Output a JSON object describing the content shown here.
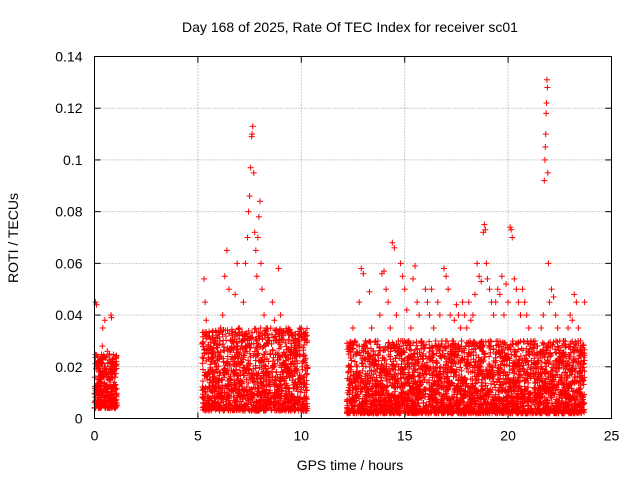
{
  "chart_data": {
    "type": "scatter",
    "title": "Day 168 of 2025, Rate Of TEC Index for receiver sc01",
    "xlabel": "GPS time / hours",
    "ylabel": "ROTI / TECUs",
    "xlim": [
      0,
      25
    ],
    "ylim": [
      0,
      0.14
    ],
    "grid": true,
    "marker": "+",
    "color": "#ff0000",
    "x_ticks": [
      0,
      5,
      10,
      15,
      20,
      25
    ],
    "x_tick_labels": [
      "0",
      "5",
      "10",
      "15",
      "20",
      "25"
    ],
    "y_ticks": [
      0,
      0.02,
      0.04,
      0.06,
      0.08,
      0.1,
      0.12,
      0.14
    ],
    "y_tick_labels": [
      "0",
      "0.02",
      "0.04",
      "0.06",
      "0.08",
      "0.1",
      "0.12",
      "0.14"
    ],
    "series": [
      {
        "name": "ROTI",
        "points": [
          [
            0.05,
            0.045
          ],
          [
            0.1,
            0.044
          ],
          [
            0.12,
            0.02
          ],
          [
            0.15,
            0.012
          ],
          [
            0.18,
            0.008
          ],
          [
            0.2,
            0.015
          ],
          [
            0.22,
            0.018
          ],
          [
            0.25,
            0.01
          ],
          [
            0.28,
            0.007
          ],
          [
            0.3,
            0.022
          ],
          [
            0.33,
            0.014
          ],
          [
            0.35,
            0.009
          ],
          [
            0.38,
            0.028
          ],
          [
            0.4,
            0.035
          ],
          [
            0.42,
            0.016
          ],
          [
            0.45,
            0.011
          ],
          [
            0.48,
            0.024
          ],
          [
            0.5,
            0.038
          ],
          [
            0.52,
            0.02
          ],
          [
            0.55,
            0.013
          ],
          [
            0.58,
            0.009
          ],
          [
            0.6,
            0.017
          ],
          [
            0.62,
            0.026
          ],
          [
            0.65,
            0.012
          ],
          [
            0.7,
            0.008
          ],
          [
            0.75,
            0.015
          ],
          [
            0.8,
            0.04
          ],
          [
            0.82,
            0.039
          ],
          [
            0.85,
            0.02
          ],
          [
            0.88,
            0.012
          ],
          [
            0.9,
            0.018
          ],
          [
            0.92,
            0.006
          ],
          [
            0.95,
            0.014
          ],
          [
            0.98,
            0.011
          ],
          [
            1.0,
            0.016
          ],
          [
            1.05,
            0.009
          ],
          [
            5.3,
            0.054
          ],
          [
            5.35,
            0.045
          ],
          [
            5.4,
            0.038
          ],
          [
            5.5,
            0.025
          ],
          [
            5.6,
            0.015
          ],
          [
            5.7,
            0.01
          ],
          [
            5.8,
            0.03
          ],
          [
            5.9,
            0.02
          ],
          [
            6.0,
            0.012
          ],
          [
            6.1,
            0.035
          ],
          [
            6.2,
            0.04
          ],
          [
            6.3,
            0.055
          ],
          [
            6.4,
            0.065
          ],
          [
            6.5,
            0.05
          ],
          [
            6.6,
            0.03
          ],
          [
            6.7,
            0.022
          ],
          [
            6.8,
            0.048
          ],
          [
            6.9,
            0.06
          ],
          [
            7.0,
            0.035
          ],
          [
            7.1,
            0.028
          ],
          [
            7.2,
            0.045
          ],
          [
            7.3,
            0.06
          ],
          [
            7.4,
            0.07
          ],
          [
            7.45,
            0.08
          ],
          [
            7.5,
            0.086
          ],
          [
            7.55,
            0.097
          ],
          [
            7.6,
            0.109
          ],
          [
            7.62,
            0.11
          ],
          [
            7.65,
            0.113
          ],
          [
            7.7,
            0.095
          ],
          [
            7.75,
            0.072
          ],
          [
            7.8,
            0.065
          ],
          [
            7.85,
            0.055
          ],
          [
            7.9,
            0.07
          ],
          [
            7.95,
            0.078
          ],
          [
            8.0,
            0.084
          ],
          [
            8.05,
            0.06
          ],
          [
            8.1,
            0.05
          ],
          [
            8.2,
            0.04
          ],
          [
            8.3,
            0.035
          ],
          [
            8.4,
            0.03
          ],
          [
            8.5,
            0.025
          ],
          [
            8.6,
            0.045
          ],
          [
            8.7,
            0.038
          ],
          [
            8.8,
            0.03
          ],
          [
            8.9,
            0.058
          ],
          [
            9.0,
            0.04
          ],
          [
            9.1,
            0.032
          ],
          [
            9.2,
            0.025
          ],
          [
            9.3,
            0.02
          ],
          [
            9.4,
            0.03
          ],
          [
            9.5,
            0.026
          ],
          [
            9.6,
            0.03
          ],
          [
            9.7,
            0.022
          ],
          [
            9.8,
            0.018
          ],
          [
            9.9,
            0.028
          ],
          [
            10.0,
            0.033
          ],
          [
            10.1,
            0.024
          ],
          [
            10.2,
            0.012
          ],
          [
            12.3,
            0.028
          ],
          [
            12.4,
            0.02
          ],
          [
            12.5,
            0.035
          ],
          [
            12.6,
            0.03
          ],
          [
            12.7,
            0.02
          ],
          [
            12.8,
            0.045
          ],
          [
            12.9,
            0.058
          ],
          [
            13.0,
            0.056
          ],
          [
            13.1,
            0.03
          ],
          [
            13.2,
            0.025
          ],
          [
            13.3,
            0.049
          ],
          [
            13.4,
            0.035
          ],
          [
            13.5,
            0.022
          ],
          [
            13.6,
            0.018
          ],
          [
            13.7,
            0.03
          ],
          [
            13.8,
            0.04
          ],
          [
            13.9,
            0.056
          ],
          [
            14.0,
            0.057
          ],
          [
            14.1,
            0.05
          ],
          [
            14.2,
            0.045
          ],
          [
            14.3,
            0.035
          ],
          [
            14.4,
            0.068
          ],
          [
            14.5,
            0.066
          ],
          [
            14.6,
            0.04
          ],
          [
            14.7,
            0.03
          ],
          [
            14.8,
            0.06
          ],
          [
            14.9,
            0.055
          ],
          [
            15.0,
            0.05
          ],
          [
            15.1,
            0.042
          ],
          [
            15.2,
            0.03
          ],
          [
            15.3,
            0.035
          ],
          [
            15.4,
            0.054
          ],
          [
            15.5,
            0.059
          ],
          [
            15.6,
            0.045
          ],
          [
            15.7,
            0.04
          ],
          [
            15.8,
            0.03
          ],
          [
            15.9,
            0.025
          ],
          [
            16.0,
            0.05
          ],
          [
            16.1,
            0.045
          ],
          [
            16.2,
            0.04
          ],
          [
            16.3,
            0.05
          ],
          [
            16.4,
            0.035
          ],
          [
            16.5,
            0.03
          ],
          [
            16.6,
            0.045
          ],
          [
            16.7,
            0.04
          ],
          [
            16.8,
            0.03
          ],
          [
            16.9,
            0.058
          ],
          [
            17.0,
            0.055
          ],
          [
            17.1,
            0.05
          ],
          [
            17.2,
            0.04
          ],
          [
            17.3,
            0.03
          ],
          [
            17.4,
            0.038
          ],
          [
            17.5,
            0.044
          ],
          [
            17.6,
            0.04
          ],
          [
            17.7,
            0.035
          ],
          [
            17.8,
            0.045
          ],
          [
            17.9,
            0.04
          ],
          [
            18.0,
            0.035
          ],
          [
            18.1,
            0.045
          ],
          [
            18.2,
            0.038
          ],
          [
            18.3,
            0.04
          ],
          [
            18.4,
            0.048
          ],
          [
            18.5,
            0.06
          ],
          [
            18.6,
            0.055
          ],
          [
            18.7,
            0.053
          ],
          [
            18.8,
            0.072
          ],
          [
            18.85,
            0.075
          ],
          [
            18.9,
            0.073
          ],
          [
            18.95,
            0.06
          ],
          [
            19.0,
            0.054
          ],
          [
            19.1,
            0.05
          ],
          [
            19.2,
            0.045
          ],
          [
            19.3,
            0.04
          ],
          [
            19.4,
            0.045
          ],
          [
            19.5,
            0.05
          ],
          [
            19.6,
            0.048
          ],
          [
            19.7,
            0.055
          ],
          [
            19.8,
            0.04
          ],
          [
            19.9,
            0.052
          ],
          [
            20.0,
            0.045
          ],
          [
            20.1,
            0.074
          ],
          [
            20.15,
            0.073
          ],
          [
            20.2,
            0.07
          ],
          [
            20.3,
            0.054
          ],
          [
            20.4,
            0.05
          ],
          [
            20.5,
            0.045
          ],
          [
            20.6,
            0.04
          ],
          [
            20.7,
            0.05
          ],
          [
            20.8,
            0.045
          ],
          [
            20.9,
            0.04
          ],
          [
            21.0,
            0.035
          ],
          [
            21.1,
            0.03
          ],
          [
            21.2,
            0.025
          ],
          [
            21.3,
            0.03
          ],
          [
            21.4,
            0.028
          ],
          [
            21.5,
            0.025
          ],
          [
            21.6,
            0.035
          ],
          [
            21.7,
            0.04
          ],
          [
            21.75,
            0.092
          ],
          [
            21.78,
            0.1
          ],
          [
            21.8,
            0.105
          ],
          [
            21.82,
            0.11
          ],
          [
            21.84,
            0.118
          ],
          [
            21.86,
            0.122
          ],
          [
            21.88,
            0.131
          ],
          [
            21.9,
            0.128
          ],
          [
            21.92,
            0.095
          ],
          [
            21.95,
            0.06
          ],
          [
            22.0,
            0.045
          ],
          [
            22.1,
            0.05
          ],
          [
            22.2,
            0.047
          ],
          [
            22.3,
            0.04
          ],
          [
            22.4,
            0.035
          ],
          [
            22.5,
            0.03
          ],
          [
            22.6,
            0.025
          ],
          [
            22.7,
            0.03
          ],
          [
            22.8,
            0.028
          ],
          [
            22.9,
            0.035
          ],
          [
            23.0,
            0.04
          ],
          [
            23.1,
            0.038
          ],
          [
            23.2,
            0.048
          ],
          [
            23.3,
            0.045
          ],
          [
            23.4,
            0.035
          ],
          [
            23.5,
            0.03
          ],
          [
            23.6,
            0.025
          ],
          [
            23.7,
            0.045
          ]
        ],
        "dense_bands": [
          {
            "x": [
              0.0,
              1.1
            ],
            "y": [
              0.004,
              0.025
            ]
          },
          {
            "x": [
              5.2,
              10.3
            ],
            "y": [
              0.003,
              0.035
            ]
          },
          {
            "x": [
              12.2,
              23.7
            ],
            "y": [
              0.002,
              0.03
            ]
          }
        ]
      }
    ]
  }
}
